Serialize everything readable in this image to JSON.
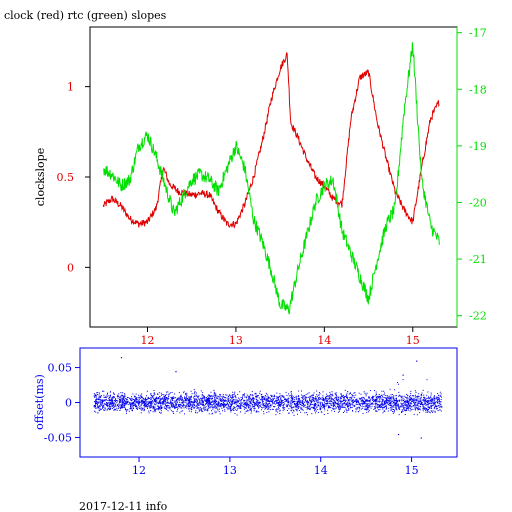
{
  "title": "clock (red) rtc (green) slopes",
  "footer": "2017-12-11 info",
  "colors": {
    "clock": "#e00000",
    "rtc": "#00e000",
    "offset": "#0000ee",
    "axis": "#000000"
  },
  "chart_data": [
    {
      "type": "line",
      "ylabel": "clockslope",
      "xlim": [
        11.35,
        15.5
      ],
      "ylim": [
        -0.33,
        1.33
      ],
      "y2lim": [
        -22.2,
        -16.9
      ],
      "x_ticks": [
        "12",
        "13",
        "14",
        "15"
      ],
      "y_ticks": [
        "0",
        "0.5",
        "1"
      ],
      "y2_ticks": [
        "-17",
        "-18",
        "-19",
        "-20",
        "-21",
        "-22"
      ],
      "series": [
        {
          "name": "clock",
          "axis": "left",
          "x": [
            11.5,
            11.6,
            11.7,
            11.8,
            11.9,
            12.0,
            12.1,
            12.18,
            12.25,
            12.35,
            12.5,
            12.6,
            12.7,
            12.8,
            12.9,
            13.0,
            13.1,
            13.2,
            13.3,
            13.4,
            13.5,
            13.58,
            13.62,
            13.7,
            13.8,
            13.9,
            14.0,
            14.1,
            14.2,
            14.3,
            14.4,
            14.5,
            14.6,
            14.7,
            14.8,
            14.9,
            15.0,
            15.1,
            15.2,
            15.3
          ],
          "y": [
            0.34,
            0.38,
            0.34,
            0.27,
            0.24,
            0.25,
            0.33,
            0.55,
            0.46,
            0.42,
            0.4,
            0.41,
            0.4,
            0.31,
            0.24,
            0.24,
            0.35,
            0.5,
            0.7,
            0.93,
            1.1,
            1.18,
            0.8,
            0.72,
            0.6,
            0.5,
            0.45,
            0.38,
            0.35,
            0.82,
            1.05,
            1.08,
            0.8,
            0.6,
            0.42,
            0.32,
            0.25,
            0.55,
            0.82,
            0.92
          ]
        },
        {
          "name": "rtc",
          "axis": "right",
          "x": [
            11.5,
            11.6,
            11.7,
            11.8,
            11.9,
            12.0,
            12.1,
            12.2,
            12.3,
            12.4,
            12.5,
            12.6,
            12.7,
            12.8,
            12.9,
            13.0,
            13.1,
            13.2,
            13.3,
            13.4,
            13.5,
            13.6,
            13.7,
            13.8,
            13.9,
            14.0,
            14.1,
            14.2,
            14.3,
            14.4,
            14.5,
            14.6,
            14.7,
            14.8,
            14.9,
            15.0,
            15.1,
            15.2,
            15.3
          ],
          "y": [
            -19.4,
            -19.5,
            -19.7,
            -19.6,
            -19.0,
            -18.8,
            -19.2,
            -19.7,
            -20.2,
            -19.9,
            -19.6,
            -19.5,
            -19.6,
            -19.8,
            -19.4,
            -19.0,
            -19.4,
            -20.3,
            -20.7,
            -21.2,
            -21.8,
            -21.9,
            -21.2,
            -20.6,
            -20.0,
            -19.7,
            -19.6,
            -20.5,
            -20.9,
            -21.3,
            -21.7,
            -21.0,
            -20.4,
            -20.1,
            -18.4,
            -17.2,
            -19.6,
            -20.4,
            -20.7
          ]
        }
      ]
    },
    {
      "type": "scatter",
      "ylabel": "offset(ms)",
      "xlim": [
        11.35,
        15.5
      ],
      "ylim": [
        -0.078,
        0.078
      ],
      "x_ticks": [
        "12",
        "13",
        "14",
        "15"
      ],
      "y_ticks": [
        "0.05",
        "0",
        "-0.05"
      ],
      "series": [
        {
          "name": "offset",
          "x_range": [
            11.5,
            15.33
          ],
          "y_range": [
            -0.02,
            0.02
          ],
          "outlier_x": [
            11.8,
            12.4,
            14.85,
            14.9,
            15.05,
            15.1
          ],
          "outlier_y": [
            0.065,
            0.045,
            -0.045,
            0.04,
            0.06,
            -0.05
          ]
        }
      ]
    }
  ]
}
